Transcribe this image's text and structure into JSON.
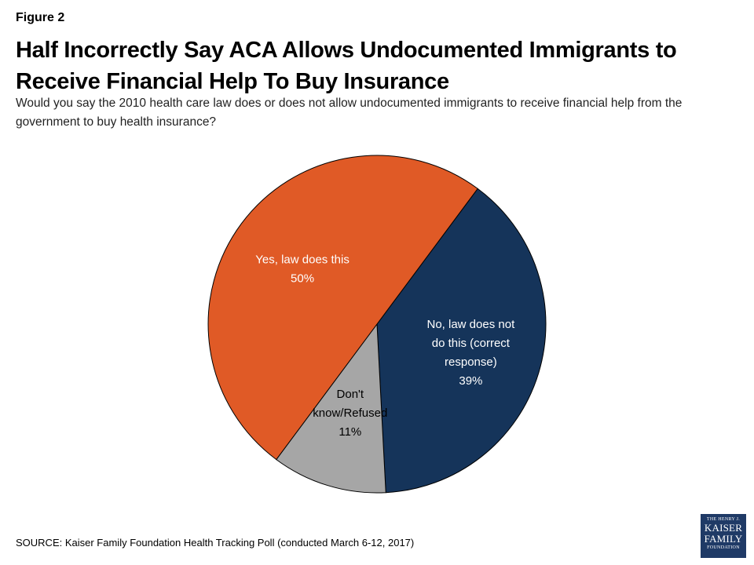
{
  "header": {
    "figure_label": "Figure 2",
    "title": "Half Incorrectly Say ACA Allows Undocumented Immigrants to Receive Financial Help To Buy Insurance",
    "subtitle": "Would you say the 2010 health care law does or does not allow undocumented immigrants to receive financial help from the government to buy health insurance?"
  },
  "chart_data": {
    "type": "pie",
    "title": "Half Incorrectly Say ACA Allows Undocumented Immigrants to Receive Financial Help To Buy Insurance",
    "slices": [
      {
        "label_lines": [
          "No, law does not",
          "do this (correct",
          "response)"
        ],
        "value": 39,
        "value_label": "39%",
        "color": "#15345a",
        "label_color": "#ffffff"
      },
      {
        "label_lines": [
          "Don't",
          "know/Refused"
        ],
        "value": 11,
        "value_label": "11%",
        "color": "#a6a6a6",
        "label_color": "#000000"
      },
      {
        "label_lines": [
          "Yes, law does this"
        ],
        "value": 50,
        "value_label": "50%",
        "color": "#e05a26",
        "label_color": "#ffffff"
      }
    ]
  },
  "footer": {
    "source": "SOURCE: Kaiser Family Foundation Health Tracking Poll (conducted March 6-12, 2017)",
    "logo_lines": [
      "THE HENRY J.",
      "KAISER",
      "FAMILY",
      "FOUNDATION"
    ]
  }
}
